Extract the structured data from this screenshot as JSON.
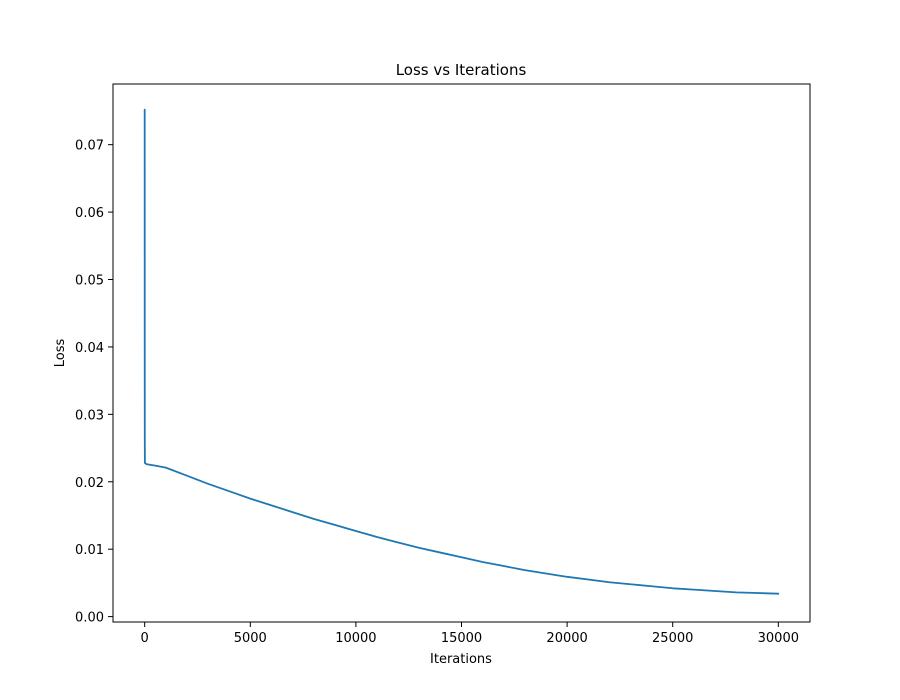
{
  "chart_data": {
    "type": "line",
    "title": "Loss vs Iterations",
    "xlabel": "Iterations",
    "ylabel": "Loss",
    "xlim": [
      -1500,
      31500
    ],
    "ylim": [
      -0.0008,
      0.079
    ],
    "x_ticks": [
      0,
      5000,
      10000,
      15000,
      20000,
      25000,
      30000
    ],
    "x_tick_labels": [
      "0",
      "5000",
      "10000",
      "15000",
      "20000",
      "25000",
      "30000"
    ],
    "y_ticks": [
      0.0,
      0.01,
      0.02,
      0.03,
      0.04,
      0.05,
      0.06,
      0.07
    ],
    "y_tick_labels": [
      "0.00",
      "0.01",
      "0.02",
      "0.03",
      "0.04",
      "0.05",
      "0.06",
      "0.07"
    ],
    "grid": false,
    "legend": "none",
    "series": [
      {
        "color": "#1f77b4",
        "x": [
          0,
          1,
          2,
          5,
          10,
          50,
          100,
          500,
          1000,
          2000,
          3000,
          4000,
          5000,
          6000,
          7000,
          8000,
          9000,
          10000,
          11000,
          12000,
          13000,
          14000,
          15000,
          16000,
          17000,
          18000,
          19000,
          20000,
          21000,
          22000,
          23000,
          24000,
          25000,
          26000,
          27000,
          28000,
          29000,
          30000
        ],
        "y": [
          0.0752,
          0.06,
          0.04,
          0.026,
          0.0228,
          0.0227,
          0.0226,
          0.0224,
          0.0221,
          0.0209,
          0.0197,
          0.0186,
          0.0175,
          0.0165,
          0.0155,
          0.0145,
          0.0136,
          0.0127,
          0.0118,
          0.011,
          0.0102,
          0.0095,
          0.0088,
          0.0081,
          0.0075,
          0.0069,
          0.0064,
          0.0059,
          0.0055,
          0.0051,
          0.0048,
          0.0045,
          0.0042,
          0.004,
          0.0038,
          0.0036,
          0.0035,
          0.0034
        ]
      }
    ]
  }
}
